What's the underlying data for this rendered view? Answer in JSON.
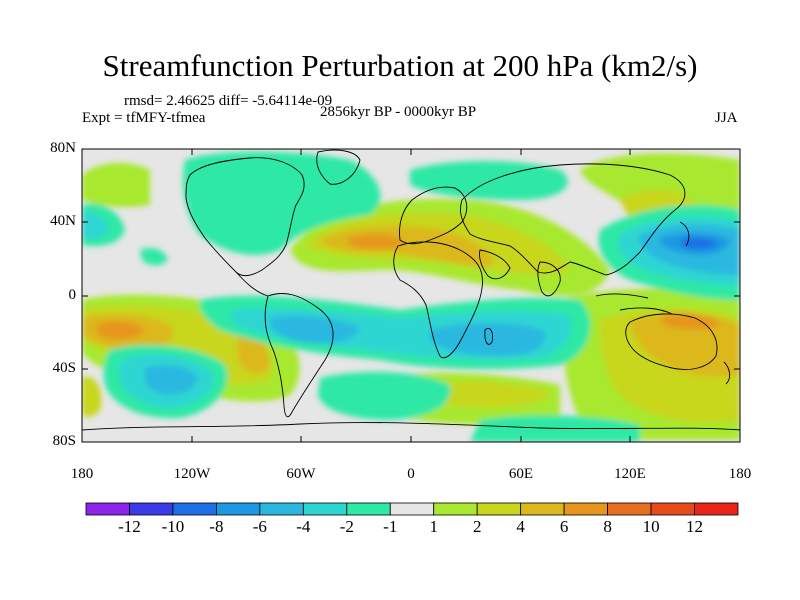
{
  "title": "Streamfunction Perturbation at 200 hPa (km2/s)",
  "stats": "rmsd= 2.46625 diff= -5.64114e-09",
  "expt": "Expt = tfMFY-tfmea",
  "period": "2856kyr BP - 0000kyr BP",
  "season": "JJA",
  "lat_ticks": [
    "80N",
    "40N",
    "0",
    "40S",
    "80S"
  ],
  "lon_ticks": [
    "180",
    "120W",
    "60W",
    "0",
    "60E",
    "120E",
    "180"
  ],
  "colorbar": {
    "colors": [
      "#8a24e8",
      "#3b3be8",
      "#1e6ee6",
      "#1e98e2",
      "#2bb8e0",
      "#2ed6d2",
      "#2ee8a6",
      "#e6e6e6",
      "#a8e82e",
      "#c8d61e",
      "#dcb81a",
      "#e6961e",
      "#e66e1e",
      "#e64a1a",
      "#ea2418"
    ],
    "labels": [
      "-12",
      "-10",
      "-8",
      "-6",
      "-4",
      "-2",
      "-1",
      "1",
      "2",
      "4",
      "6",
      "8",
      "10",
      "12"
    ]
  },
  "palette": {
    "ocean_bg": "#e6e6e6",
    "pos1": "#a8e82e",
    "pos2": "#c8d61e",
    "pos4": "#dcb81a",
    "pos6": "#e6961e",
    "neg1": "#2ee8a6",
    "neg2": "#2ed6d2",
    "neg4": "#2bb8e0",
    "neg6": "#1e98e2",
    "neg8": "#1e6ee6"
  }
}
